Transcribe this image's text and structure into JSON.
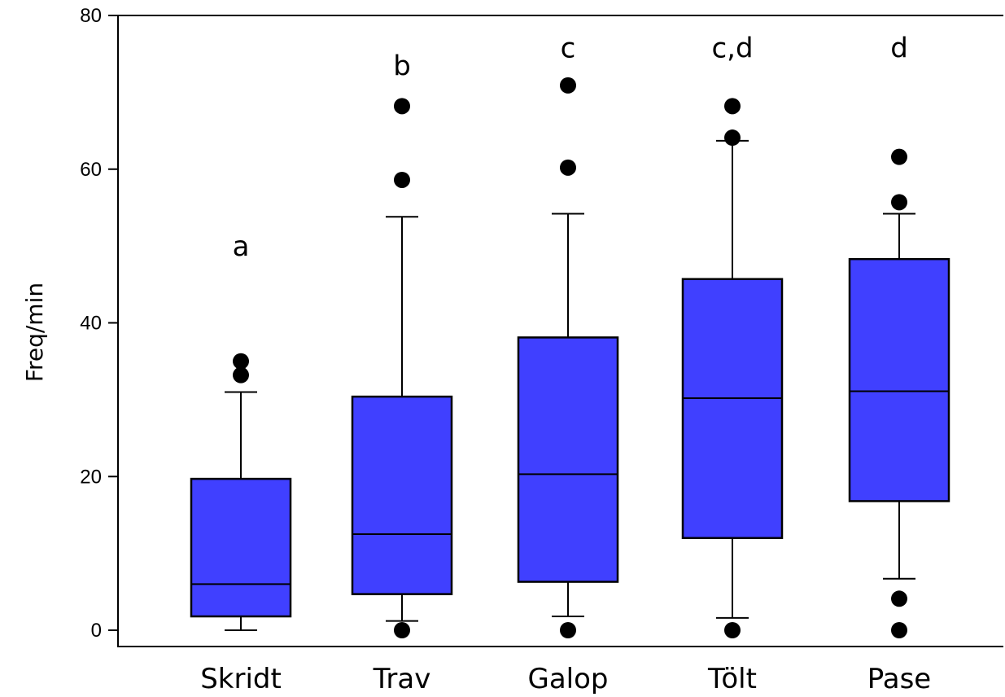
{
  "chart_data": {
    "type": "box",
    "title": "",
    "xlabel": "",
    "ylabel": "Freq/min",
    "ylim": [
      0,
      80
    ],
    "yticks": [
      0,
      20,
      40,
      60,
      80
    ],
    "grid": false,
    "legend": "none",
    "box_color": "#4040ff",
    "categories": [
      "Skridt",
      "Trav",
      "Galop",
      "Tölt",
      "Pase"
    ],
    "groups": [
      {
        "category": "Skridt",
        "whisker_low": 0,
        "q1": 1.8,
        "median": 6,
        "q3": 19.7,
        "whisker_high": 31,
        "outliers": [
          33.2,
          35
        ],
        "significance": "a",
        "significance_y": 50
      },
      {
        "category": "Trav",
        "whisker_low": 1.2,
        "q1": 4.7,
        "median": 12.5,
        "q3": 30.4,
        "whisker_high": 53.8,
        "outliers": [
          0,
          58.6,
          68.2
        ],
        "significance": "b",
        "significance_y": 73.5
      },
      {
        "category": "Galop",
        "whisker_low": 1.8,
        "q1": 6.3,
        "median": 20.3,
        "q3": 38.1,
        "whisker_high": 54.2,
        "outliers": [
          0,
          60.2,
          70.9
        ],
        "significance": "c",
        "significance_y": 75.8
      },
      {
        "category": "Tölt",
        "whisker_low": 1.6,
        "q1": 12,
        "median": 30.2,
        "q3": 45.7,
        "whisker_high": 63.7,
        "outliers": [
          0,
          64.1,
          68.2
        ],
        "significance": "c,d",
        "significance_y": 75.8
      },
      {
        "category": "Pase",
        "whisker_low": 6.7,
        "q1": 16.8,
        "median": 31.1,
        "q3": 48.3,
        "whisker_high": 54.2,
        "outliers": [
          0,
          4.1,
          55.7,
          61.6
        ],
        "significance": "d",
        "significance_y": 75.8
      }
    ]
  }
}
